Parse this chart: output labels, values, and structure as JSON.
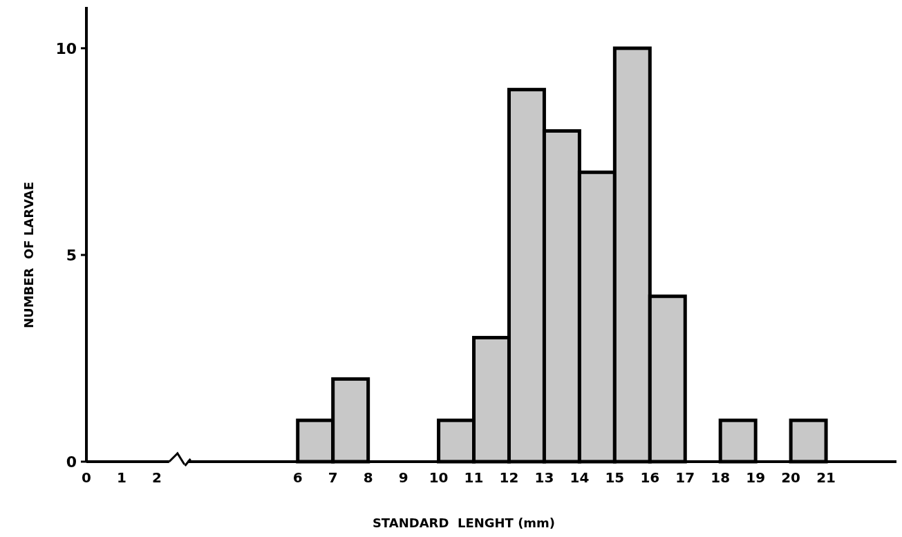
{
  "chart_data": {
    "type": "histogram",
    "xlabel": "STANDARD  LENGHT (mm)",
    "ylabel": "NUMBER  OF LARVAE",
    "bins": [
      6,
      7,
      8,
      9,
      10,
      11,
      12,
      13,
      14,
      15,
      16,
      17,
      18,
      19,
      20,
      21
    ],
    "values": [
      1,
      2,
      0,
      0,
      1,
      3,
      9,
      8,
      7,
      10,
      4,
      0,
      1,
      0,
      1
    ],
    "color": "#c8c8c8",
    "xlim": [
      0,
      23
    ],
    "xticks": [
      0,
      1,
      2,
      6,
      7,
      8,
      9,
      10,
      11,
      12,
      13,
      14,
      15,
      16,
      17,
      18,
      19,
      20,
      21
    ],
    "ylim": [
      0,
      11
    ],
    "yticks": [
      0,
      5,
      10
    ]
  }
}
